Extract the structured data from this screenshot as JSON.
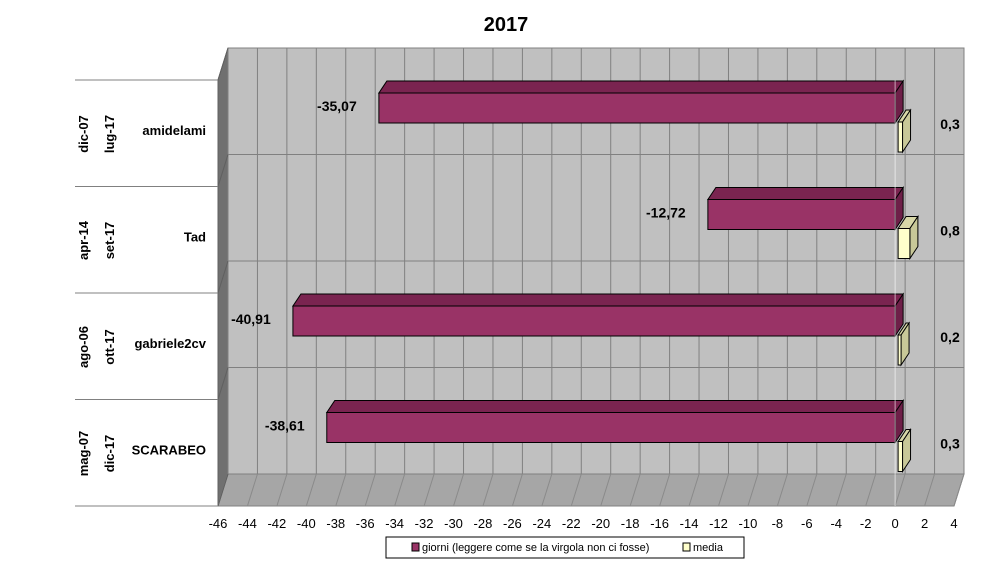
{
  "chart_data": {
    "type": "bar",
    "orientation": "horizontal",
    "title": "2017",
    "categories": [
      {
        "name": "amidelami",
        "from": "dic-07",
        "to": "lug-17"
      },
      {
        "name": "Tad",
        "from": "apr-14",
        "to": "set-17"
      },
      {
        "name": "gabriele2cv",
        "from": "ago-06",
        "to": "ott-17"
      },
      {
        "name": "SCARABEO",
        "from": "mag-07",
        "to": "dic-17"
      }
    ],
    "series": [
      {
        "name": "giorni (leggere come se la virgola non ci fosse)",
        "color": "#993366",
        "values": [
          -35.07,
          -12.72,
          -40.91,
          -38.61
        ],
        "labels": [
          "-35,07",
          "-12,72",
          "-40,91",
          "-38,61"
        ]
      },
      {
        "name": "media",
        "color": "#ffffcc",
        "values": [
          0.3,
          0.8,
          0.2,
          0.3
        ],
        "labels": [
          "0,3",
          "0,8",
          "0,2",
          "0,3"
        ]
      }
    ],
    "xlim": [
      -46,
      4
    ],
    "xticks": [
      -46,
      -44,
      -42,
      -40,
      -38,
      -36,
      -34,
      -32,
      -30,
      -28,
      -26,
      -24,
      -22,
      -20,
      -18,
      -16,
      -14,
      -12,
      -10,
      -8,
      -6,
      -4,
      -2,
      0,
      2,
      4
    ],
    "grid": true,
    "style": "3d",
    "legend_position": "bottom"
  }
}
